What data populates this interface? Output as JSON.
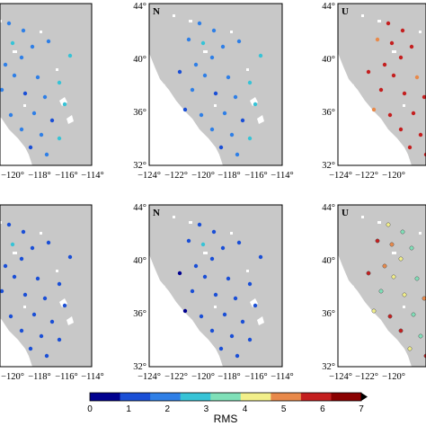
{
  "components": {
    "north": "N",
    "up": "U"
  },
  "ticks": {
    "lat": [
      "44°",
      "40°",
      "36°",
      "32°"
    ],
    "lon_full": [
      "−124°",
      "−122°",
      "−120°",
      "−118°",
      "−116°",
      "−114°"
    ],
    "lon_left_cut": [
      "−120°",
      "−118°",
      "−116°",
      "−114°"
    ],
    "lon_right_cut": [
      "−124°",
      "−122°",
      "−120°"
    ]
  },
  "colorbar": {
    "title": "RMS",
    "tick_labels": [
      "0",
      "1",
      "2",
      "3",
      "4",
      "5",
      "6",
      "7"
    ],
    "colors": [
      "#00008f",
      "#1a4fd6",
      "#2f7fe6",
      "#37c3d6",
      "#7fe0b8",
      "#f2ef8a",
      "#e8894a",
      "#c41f1f",
      "#8a0000"
    ],
    "land": "#c8c8c8",
    "ocean": "#ffffff"
  },
  "panels": {
    "n1": [
      "#2f7fe6",
      "#2f7fe6",
      "#2f7fe6",
      "#37c3d6",
      "#2f7fe6",
      "#2f7fe6",
      "#37c3d6",
      "#2f7fe6",
      "#2f7fe6",
      "#1a4fd6",
      "#2f7fe6",
      "#2f7fe6",
      "#37c3d6",
      "#2f7fe6",
      "#1a4fd6",
      "#2f7fe6",
      "#37c3d6",
      "#1a4fd6",
      "#2f7fe6",
      "#2f7fe6",
      "#1a4fd6",
      "#2f7fe6",
      "#2f7fe6",
      "#37c3d6",
      "#1a4fd6",
      "#2f7fe6"
    ],
    "u1": [
      "#c41f1f",
      "#c41f1f",
      "#e8894a",
      "#c41f1f",
      "#c41f1f",
      "#c41f1f",
      "#e8894a",
      "#c41f1f",
      "#c41f1f",
      "#c41f1f",
      "#c41f1f",
      "#e8894a",
      "#c41f1f",
      "#c41f1f",
      "#c41f1f",
      "#c41f1f",
      "#c41f1f",
      "#e8894a",
      "#c41f1f",
      "#c41f1f",
      "#c41f1f",
      "#c41f1f",
      "#c41f1f",
      "#e8894a",
      "#c41f1f",
      "#c41f1f"
    ],
    "n2": [
      "#1a4fd6",
      "#1a4fd6",
      "#1a4fd6",
      "#37c3d6",
      "#1a4fd6",
      "#1a4fd6",
      "#1a4fd6",
      "#1a4fd6",
      "#1a4fd6",
      "#00008f",
      "#1a4fd6",
      "#1a4fd6",
      "#1a4fd6",
      "#1a4fd6",
      "#1a4fd6",
      "#1a4fd6",
      "#1a4fd6",
      "#00008f",
      "#1a4fd6",
      "#1a4fd6",
      "#1a4fd6",
      "#1a4fd6",
      "#1a4fd6",
      "#1a4fd6",
      "#1a4fd6",
      "#1a4fd6"
    ],
    "u2": [
      "#f2ef8a",
      "#7fe0b8",
      "#c41f1f",
      "#e8894a",
      "#7fe0b8",
      "#f2ef8a",
      "#7fe0b8",
      "#f2ef8a",
      "#e8894a",
      "#c41f1f",
      "#f2ef8a",
      "#7fe0b8",
      "#c41f1f",
      "#7fe0b8",
      "#f2ef8a",
      "#e8894a",
      "#7fe0b8",
      "#f2ef8a",
      "#c41f1f",
      "#7fe0b8",
      "#f2ef8a",
      "#c41f1f",
      "#7fe0b8",
      "#e8894a",
      "#f2ef8a",
      "#c41f1f"
    ]
  }
}
